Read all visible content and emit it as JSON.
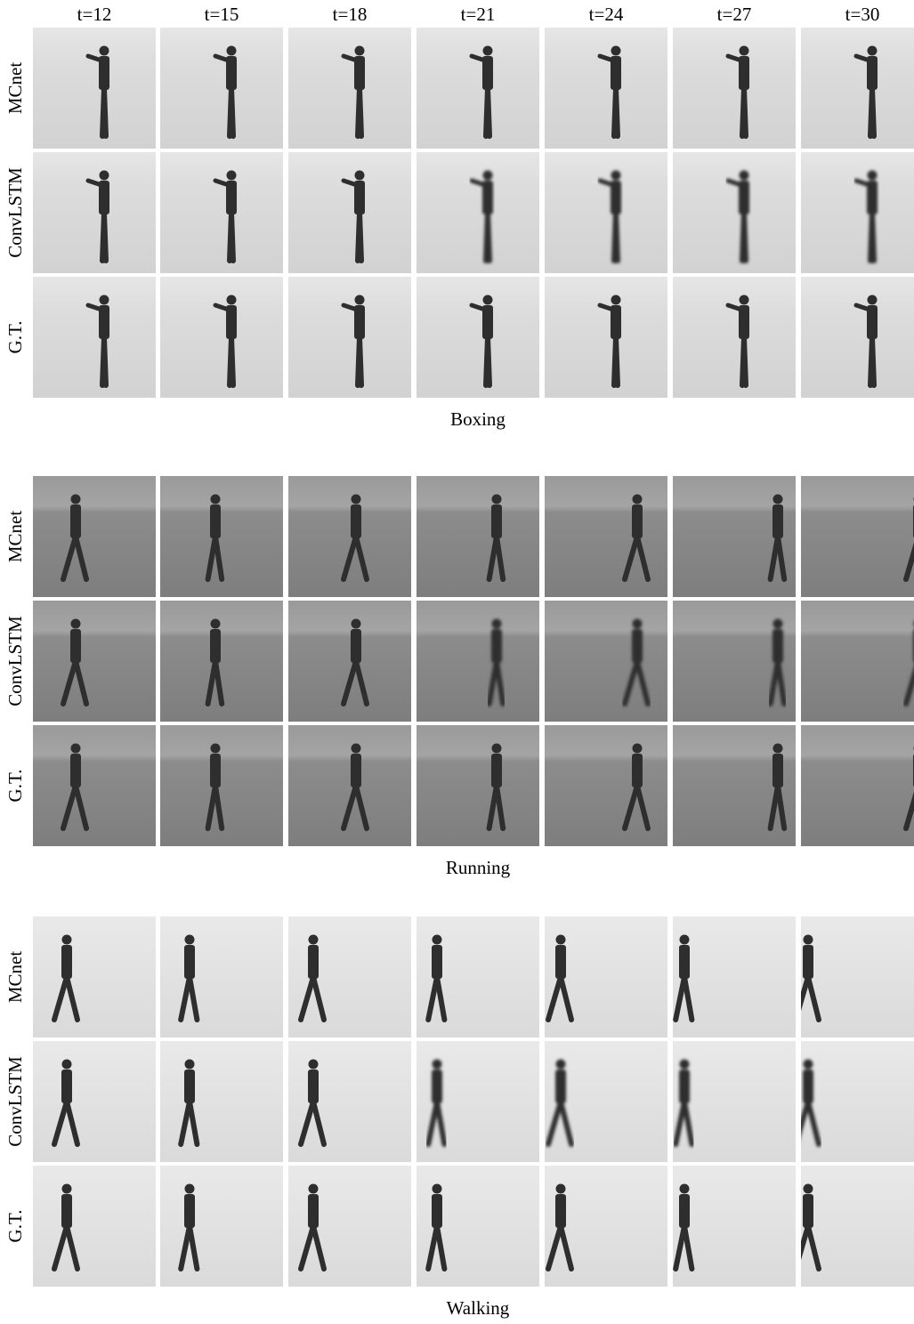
{
  "columns": [
    "t=12",
    "t=15",
    "t=18",
    "t=21",
    "t=24",
    "t=27",
    "t=30"
  ],
  "sections": [
    {
      "caption": "Boxing",
      "rows": [
        "MCnet",
        "ConvLSTM",
        "G.T."
      ]
    },
    {
      "caption": "Running",
      "rows": [
        "MCnet",
        "ConvLSTM",
        "G.T."
      ]
    },
    {
      "caption": "Walking",
      "rows": [
        "MCnet",
        "ConvLSTM",
        "G.T."
      ]
    }
  ]
}
